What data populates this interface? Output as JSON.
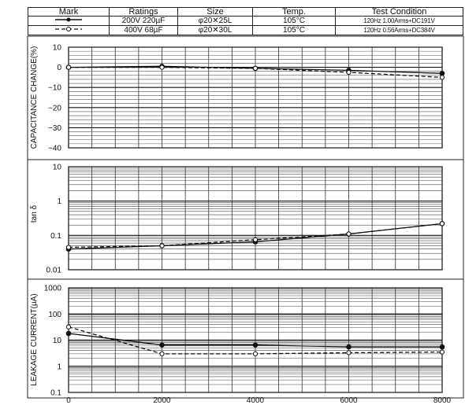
{
  "legend_table": {
    "headers": [
      "Mark",
      "Ratings",
      "Size",
      "Temp.",
      "Test Condition"
    ],
    "rows": [
      {
        "mark": "solid-dot",
        "ratings": "200V 220µF",
        "size": "φ20✕25L",
        "temp": "105°C",
        "condition": "120Hz 1.00Arms+DC191V"
      },
      {
        "mark": "dashed-circle",
        "ratings": "400V 68µF",
        "size": "φ20✕30L",
        "temp": "105°C",
        "condition": "120Hz 0.56Arms+DC384V"
      }
    ]
  },
  "chart_data": [
    {
      "type": "line",
      "ylabel": "CAPACITANCE CHANGE(%)",
      "ylim": [
        -40,
        10
      ],
      "yticks": [
        "10",
        "0",
        "−10",
        "−20",
        "−30",
        "−40"
      ],
      "x": [
        0,
        2000,
        4000,
        6000,
        8000
      ],
      "series": [
        {
          "mark": "solid-dot",
          "values": [
            0,
            0.5,
            -0.5,
            -1.5,
            -3
          ]
        },
        {
          "mark": "dashed-circle",
          "values": [
            0,
            0,
            -0.5,
            -2.5,
            -5
          ]
        }
      ]
    },
    {
      "type": "line",
      "ylabel": "tan δ",
      "yscale": "log",
      "ylim": [
        0.01,
        10
      ],
      "yticks": [
        "10",
        "1",
        "0.1",
        "0.01"
      ],
      "x": [
        0,
        2000,
        4000,
        6000,
        8000
      ],
      "series": [
        {
          "mark": "solid-dot",
          "values": [
            0.04,
            0.05,
            0.065,
            0.11,
            0.22
          ]
        },
        {
          "mark": "dashed-circle",
          "values": [
            0.045,
            0.05,
            0.075,
            0.11,
            0.22
          ]
        }
      ]
    },
    {
      "type": "line",
      "ylabel": "LEAKAGE CURRENT(µA)",
      "yscale": "log",
      "ylim": [
        0.1,
        1000
      ],
      "yticks": [
        "1000",
        "100",
        "10",
        "1",
        "0.1"
      ],
      "x": [
        0,
        2000,
        4000,
        6000,
        8000
      ],
      "xticks": [
        "0",
        "2000",
        "4000",
        "6000",
        "8000"
      ],
      "series": [
        {
          "mark": "solid-dot",
          "values": [
            18,
            6.5,
            6.5,
            5.5,
            5.5
          ]
        },
        {
          "mark": "dashed-circle",
          "values": [
            32,
            3,
            3,
            3.3,
            3.5
          ]
        }
      ]
    }
  ]
}
